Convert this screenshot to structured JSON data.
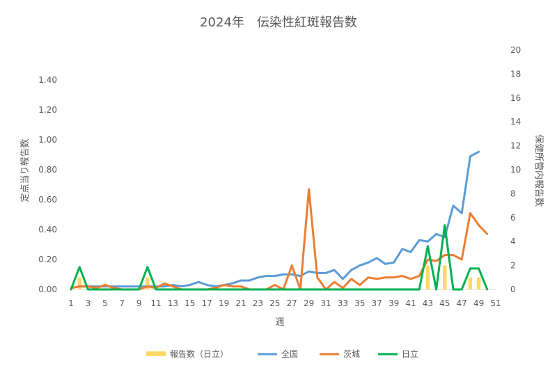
{
  "chart_data": {
    "type": "line",
    "title": "2024年　伝染性紅斑報告数",
    "xlabel": "週",
    "ylabel_left": "定点当り報告数",
    "ylabel_right": "保健所管内報告数",
    "x_ticks": [
      "1",
      "3",
      "5",
      "7",
      "9",
      "11",
      "13",
      "15",
      "17",
      "19",
      "21",
      "23",
      "25",
      "27",
      "29",
      "31",
      "33",
      "35",
      "37",
      "39",
      "41",
      "43",
      "45",
      "47",
      "49",
      "51"
    ],
    "y_left_ticks": [
      "0.00",
      "0.20",
      "0.40",
      "0.60",
      "0.80",
      "1.00",
      "1.20",
      "1.40"
    ],
    "y_right_ticks": [
      "0",
      "2",
      "4",
      "6",
      "8",
      "10",
      "12",
      "14",
      "16",
      "18",
      "20"
    ],
    "ylim_left": [
      0,
      1.6
    ],
    "ylim_right": [
      0,
      20
    ],
    "x_range": [
      1,
      51
    ],
    "grid": false,
    "legend_position": "bottom",
    "series": [
      {
        "name": "報告数（日立）",
        "kind": "bar",
        "axis": "right",
        "color": "#FFD966",
        "values": [
          0,
          1,
          0,
          0,
          0,
          0,
          0,
          0,
          0,
          1,
          0,
          0,
          0,
          0,
          0,
          0,
          0,
          0,
          0,
          0,
          0,
          0,
          0,
          0,
          0,
          0,
          0,
          0,
          0,
          0,
          0,
          0,
          0,
          0,
          0,
          0,
          0,
          0,
          0,
          0,
          0,
          0,
          2,
          0,
          2,
          0,
          0,
          1,
          1,
          0
        ]
      },
      {
        "name": "全国",
        "kind": "line",
        "axis": "left",
        "color": "#5B9BD5",
        "values": [
          0.01,
          0.02,
          0.02,
          0.02,
          0.02,
          0.02,
          0.02,
          0.02,
          0.02,
          0.02,
          0.02,
          0.02,
          0.03,
          0.02,
          0.03,
          0.05,
          0.03,
          0.02,
          0.03,
          0.04,
          0.06,
          0.06,
          0.08,
          0.09,
          0.09,
          0.1,
          0.1,
          0.09,
          0.12,
          0.11,
          0.11,
          0.13,
          0.07,
          0.13,
          0.16,
          0.18,
          0.21,
          0.17,
          0.18,
          0.27,
          0.25,
          0.33,
          0.32,
          0.37,
          0.35,
          0.56,
          0.51,
          0.89,
          0.92
        ]
      },
      {
        "name": "茨城",
        "kind": "line",
        "axis": "left",
        "color": "#ED7D31",
        "values": [
          0.01,
          0.02,
          0.02,
          0.01,
          0.03,
          0.01,
          0.0,
          0.0,
          0.0,
          0.02,
          0.01,
          0.04,
          0.02,
          0.0,
          0.0,
          0.0,
          0.0,
          0.01,
          0.03,
          0.02,
          0.02,
          0.0,
          0.0,
          0.0,
          0.03,
          0.0,
          0.16,
          0.0,
          0.67,
          0.08,
          0.0,
          0.05,
          0.01,
          0.07,
          0.03,
          0.08,
          0.07,
          0.08,
          0.08,
          0.09,
          0.07,
          0.09,
          0.2,
          0.19,
          0.23,
          0.23,
          0.2,
          0.51,
          0.43,
          0.37
        ]
      },
      {
        "name": "日立",
        "kind": "line",
        "axis": "left",
        "color": "#00B050",
        "values": [
          0.0,
          0.15,
          0.0,
          0.0,
          0.0,
          0.0,
          0.0,
          0.0,
          0.0,
          0.15,
          0.0,
          0.0,
          0.0,
          0.0,
          0.0,
          0.0,
          0.0,
          0.0,
          0.0,
          0.0,
          0.0,
          0.0,
          0.0,
          0.0,
          0.0,
          0.0,
          0.0,
          0.0,
          0.0,
          0.0,
          0.0,
          0.0,
          0.0,
          0.0,
          0.0,
          0.0,
          0.0,
          0.0,
          0.0,
          0.0,
          0.0,
          0.0,
          0.29,
          0.0,
          0.43,
          0.0,
          0.0,
          0.14,
          0.14,
          0.0
        ]
      }
    ]
  }
}
